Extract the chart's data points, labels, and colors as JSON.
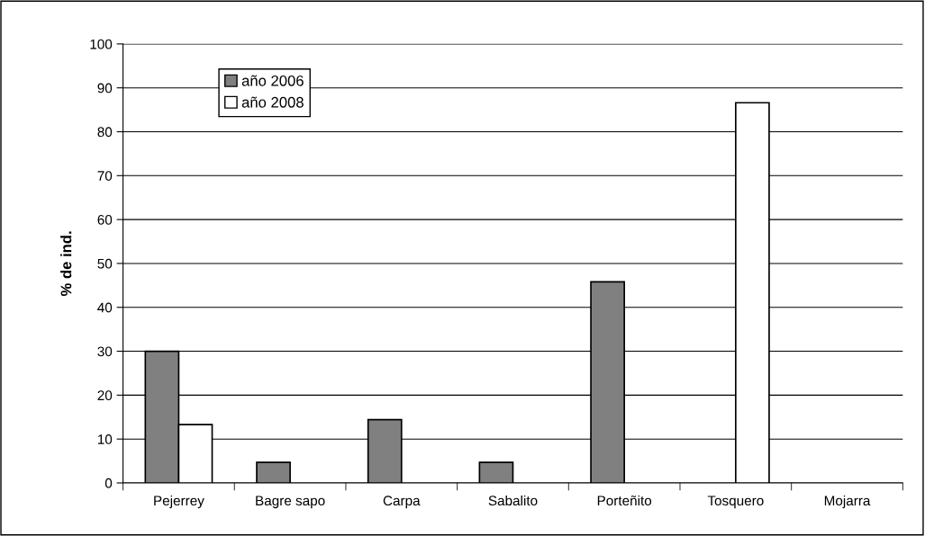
{
  "chart_data": {
    "type": "bar",
    "ylabel": "% de ind.",
    "categories": [
      "Pejerrey",
      "Bagre sapo",
      "Carpa",
      "Sabalito",
      "Porteñito",
      "Tosquero",
      "Mojarra"
    ],
    "series": [
      {
        "name": "año 2006",
        "color": "#808080",
        "values": [
          30,
          4.7,
          14.4,
          4.7,
          45.8,
          null,
          null
        ]
      },
      {
        "name": "año 2008",
        "color": "#ffffff",
        "values": [
          13.3,
          null,
          null,
          null,
          null,
          86.6,
          null
        ]
      }
    ],
    "ylim": [
      0,
      100
    ],
    "yticks": [
      0,
      10,
      20,
      30,
      40,
      50,
      60,
      70,
      80,
      90,
      100
    ],
    "grid": "y",
    "legend": "top left"
  }
}
